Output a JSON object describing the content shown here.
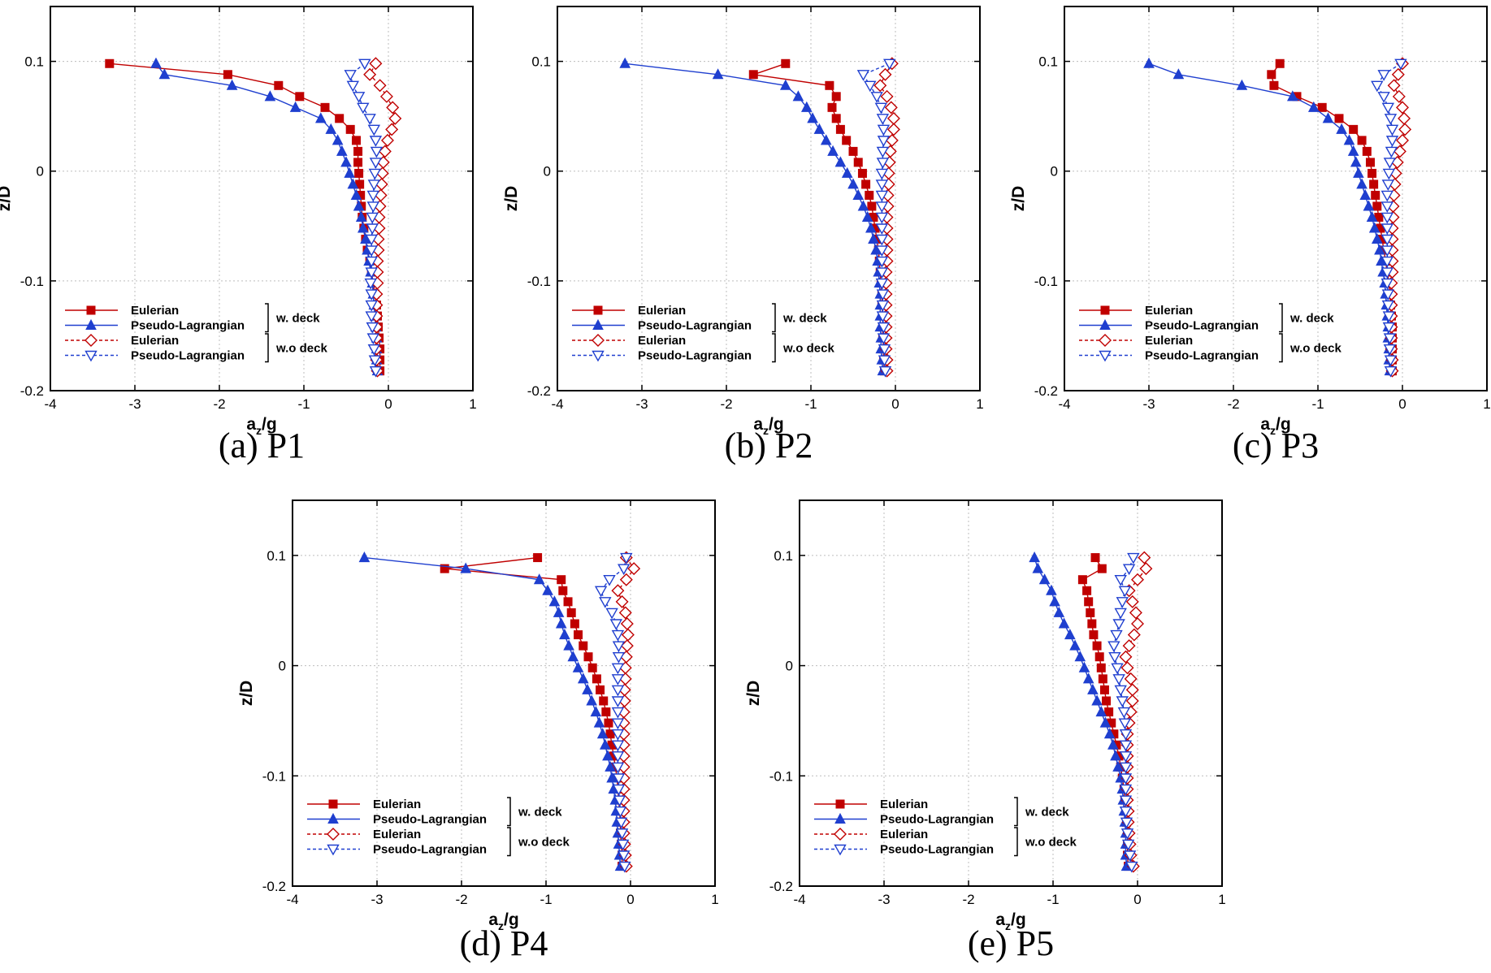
{
  "colors": {
    "red": "#c00000",
    "blue": "#1f3fcf",
    "grid": "#bdbdbd"
  },
  "legend": {
    "items": [
      {
        "label": "Eulerian",
        "series": "euler_deck"
      },
      {
        "label": "Pseudo-Lagrangian",
        "series": "lag_deck"
      },
      {
        "label": "Eulerian",
        "series": "euler_nodeck"
      },
      {
        "label": "Pseudo-Lagrangian",
        "series": "lag_nodeck"
      }
    ],
    "group_w_deck": "w. deck",
    "group_wo_deck": "w.o deck",
    "placement": "bottom-left"
  },
  "chart_data": [
    {
      "type": "line",
      "caption": "(a) P1",
      "xlabel": "a",
      "xlabel_sub": "z",
      "xlabel_tail": "/g",
      "ylabel": "z/D",
      "xlim": [
        -4,
        1
      ],
      "ylim": [
        -0.2,
        0.15
      ],
      "xticks": [
        "-4",
        "-3",
        "-2",
        "-1",
        "0",
        "1"
      ],
      "yticks": [
        "-0.2",
        "-0.1",
        "0",
        "0.1"
      ],
      "grid": true,
      "y": [
        0.098,
        0.088,
        0.078,
        0.068,
        0.058,
        0.048,
        0.038,
        0.028,
        0.018,
        0.008,
        -0.002,
        -0.012,
        -0.022,
        -0.032,
        -0.042,
        -0.052,
        -0.062,
        -0.072,
        -0.082,
        -0.092,
        -0.102,
        -0.112,
        -0.122,
        -0.132,
        -0.142,
        -0.152,
        -0.162,
        -0.172,
        -0.182
      ],
      "series": [
        {
          "name": "Eulerian w. deck",
          "key": "euler_deck",
          "x": [
            -3.3,
            -1.9,
            -1.3,
            -1.05,
            -0.75,
            -0.58,
            -0.45,
            -0.38,
            -0.36,
            -0.36,
            -0.35,
            -0.34,
            -0.33,
            -0.32,
            -0.31,
            -0.29,
            -0.27,
            -0.25,
            -0.22,
            -0.2,
            -0.18,
            -0.16,
            -0.14,
            -0.13,
            -0.12,
            -0.11,
            -0.1,
            -0.1,
            -0.1
          ]
        },
        {
          "name": "Pseudo-Lagrangian w. deck",
          "key": "lag_deck",
          "x": [
            -2.75,
            -2.65,
            -1.85,
            -1.4,
            -1.1,
            -0.8,
            -0.68,
            -0.6,
            -0.55,
            -0.5,
            -0.46,
            -0.42,
            -0.38,
            -0.35,
            -0.32,
            -0.3,
            -0.27,
            -0.25,
            -0.23,
            -0.21,
            -0.19,
            -0.18,
            -0.17,
            -0.16,
            -0.15,
            -0.14,
            -0.14,
            -0.14,
            -0.13
          ]
        },
        {
          "name": "Eulerian w.o deck",
          "key": "euler_nodeck",
          "x": [
            -0.15,
            -0.22,
            -0.1,
            -0.02,
            0.05,
            0.08,
            0.04,
            -0.01,
            -0.04,
            -0.06,
            -0.07,
            -0.08,
            -0.09,
            -0.1,
            -0.11,
            -0.11,
            -0.12,
            -0.12,
            -0.13,
            -0.13,
            -0.13,
            -0.14,
            -0.14,
            -0.14,
            -0.14,
            -0.14,
            -0.14,
            -0.14,
            -0.13
          ]
        },
        {
          "name": "Pseudo-Lagrangian w.o deck",
          "key": "lag_nodeck",
          "x": [
            -0.28,
            -0.45,
            -0.42,
            -0.35,
            -0.3,
            -0.22,
            -0.17,
            -0.15,
            -0.14,
            -0.15,
            -0.16,
            -0.17,
            -0.18,
            -0.18,
            -0.19,
            -0.19,
            -0.2,
            -0.2,
            -0.2,
            -0.2,
            -0.21,
            -0.2,
            -0.2,
            -0.2,
            -0.19,
            -0.18,
            -0.17,
            -0.16,
            -0.15
          ]
        }
      ]
    },
    {
      "type": "line",
      "caption": "(b) P2",
      "xlabel": "a",
      "xlabel_sub": "z",
      "xlabel_tail": "/g",
      "ylabel": "z/D",
      "xlim": [
        -4,
        1
      ],
      "ylim": [
        -0.2,
        0.15
      ],
      "xticks": [
        "-4",
        "-3",
        "-2",
        "-1",
        "0",
        "1"
      ],
      "yticks": [
        "-0.2",
        "-0.1",
        "0",
        "0.1"
      ],
      "grid": true,
      "y": [
        0.098,
        0.088,
        0.078,
        0.068,
        0.058,
        0.048,
        0.038,
        0.028,
        0.018,
        0.008,
        -0.002,
        -0.012,
        -0.022,
        -0.032,
        -0.042,
        -0.052,
        -0.062,
        -0.072,
        -0.082,
        -0.092,
        -0.102,
        -0.112,
        -0.122,
        -0.132,
        -0.142,
        -0.152,
        -0.162,
        -0.172,
        -0.182
      ],
      "series": [
        {
          "name": "Eulerian w. deck",
          "key": "euler_deck",
          "x": [
            -1.3,
            -1.68,
            -0.78,
            -0.7,
            -0.75,
            -0.7,
            -0.65,
            -0.58,
            -0.5,
            -0.44,
            -0.39,
            -0.35,
            -0.31,
            -0.28,
            -0.26,
            -0.24,
            -0.22,
            -0.2,
            -0.19,
            -0.18,
            -0.17,
            -0.16,
            -0.16,
            -0.15,
            -0.15,
            -0.15,
            -0.14,
            -0.14,
            -0.13
          ]
        },
        {
          "name": "Pseudo-Lagrangian w. deck",
          "key": "lag_deck",
          "x": [
            -3.2,
            -2.1,
            -1.3,
            -1.15,
            -1.05,
            -0.98,
            -0.9,
            -0.82,
            -0.74,
            -0.65,
            -0.57,
            -0.5,
            -0.44,
            -0.38,
            -0.33,
            -0.29,
            -0.26,
            -0.23,
            -0.21,
            -0.2,
            -0.19,
            -0.18,
            -0.18,
            -0.18,
            -0.18,
            -0.17,
            -0.17,
            -0.16,
            -0.15
          ]
        },
        {
          "name": "Eulerian w.o deck",
          "key": "euler_nodeck",
          "x": [
            -0.04,
            -0.12,
            -0.18,
            -0.1,
            -0.05,
            -0.02,
            -0.02,
            -0.04,
            -0.06,
            -0.07,
            -0.08,
            -0.08,
            -0.09,
            -0.09,
            -0.1,
            -0.1,
            -0.1,
            -0.1,
            -0.1,
            -0.11,
            -0.11,
            -0.11,
            -0.11,
            -0.11,
            -0.11,
            -0.11,
            -0.11,
            -0.1,
            -0.1
          ]
        },
        {
          "name": "Pseudo-Lagrangian w.o deck",
          "key": "lag_nodeck",
          "x": [
            -0.07,
            -0.38,
            -0.3,
            -0.22,
            -0.17,
            -0.15,
            -0.14,
            -0.14,
            -0.15,
            -0.15,
            -0.16,
            -0.16,
            -0.16,
            -0.16,
            -0.16,
            -0.16,
            -0.16,
            -0.16,
            -0.16,
            -0.16,
            -0.16,
            -0.15,
            -0.15,
            -0.15,
            -0.14,
            -0.14,
            -0.13,
            -0.13,
            -0.12
          ]
        }
      ]
    },
    {
      "type": "line",
      "caption": "(c) P3",
      "xlabel": "a",
      "xlabel_sub": "z",
      "xlabel_tail": "/g",
      "ylabel": "z/D",
      "xlim": [
        -4,
        1
      ],
      "ylim": [
        -0.2,
        0.15
      ],
      "xticks": [
        "-4",
        "-3",
        "-2",
        "-1",
        "0",
        "1"
      ],
      "yticks": [
        "-0.2",
        "-0.1",
        "0",
        "0.1"
      ],
      "grid": true,
      "y": [
        0.098,
        0.088,
        0.078,
        0.068,
        0.058,
        0.048,
        0.038,
        0.028,
        0.018,
        0.008,
        -0.002,
        -0.012,
        -0.022,
        -0.032,
        -0.042,
        -0.052,
        -0.062,
        -0.072,
        -0.082,
        -0.092,
        -0.102,
        -0.112,
        -0.122,
        -0.132,
        -0.142,
        -0.152,
        -0.162,
        -0.172,
        -0.182
      ],
      "series": [
        {
          "name": "Eulerian w. deck",
          "key": "euler_deck",
          "x": [
            -1.45,
            -1.55,
            -1.52,
            -1.25,
            -0.95,
            -0.75,
            -0.58,
            -0.48,
            -0.42,
            -0.38,
            -0.36,
            -0.34,
            -0.32,
            -0.3,
            -0.28,
            -0.26,
            -0.24,
            -0.22,
            -0.2,
            -0.18,
            -0.16,
            -0.15,
            -0.14,
            -0.13,
            -0.12,
            -0.12,
            -0.12,
            -0.12,
            -0.12
          ]
        },
        {
          "name": "Pseudo-Lagrangian w. deck",
          "key": "lag_deck",
          "x": [
            -3.0,
            -2.65,
            -1.9,
            -1.3,
            -1.05,
            -0.88,
            -0.72,
            -0.63,
            -0.58,
            -0.55,
            -0.52,
            -0.48,
            -0.44,
            -0.4,
            -0.36,
            -0.33,
            -0.3,
            -0.27,
            -0.25,
            -0.23,
            -0.21,
            -0.2,
            -0.19,
            -0.18,
            -0.17,
            -0.17,
            -0.16,
            -0.16,
            -0.15
          ]
        },
        {
          "name": "Eulerian w.o deck",
          "key": "euler_nodeck",
          "x": [
            0.0,
            -0.05,
            -0.1,
            -0.04,
            0.0,
            0.02,
            0.03,
            0.0,
            -0.03,
            -0.06,
            -0.08,
            -0.09,
            -0.1,
            -0.11,
            -0.11,
            -0.12,
            -0.12,
            -0.12,
            -0.12,
            -0.12,
            -0.13,
            -0.13,
            -0.13,
            -0.13,
            -0.13,
            -0.13,
            -0.13,
            -0.12,
            -0.12
          ]
        },
        {
          "name": "Pseudo-Lagrangian w.o deck",
          "key": "lag_nodeck",
          "x": [
            -0.02,
            -0.22,
            -0.3,
            -0.22,
            -0.17,
            -0.14,
            -0.12,
            -0.12,
            -0.13,
            -0.15,
            -0.16,
            -0.17,
            -0.18,
            -0.18,
            -0.18,
            -0.18,
            -0.18,
            -0.18,
            -0.18,
            -0.18,
            -0.18,
            -0.17,
            -0.17,
            -0.16,
            -0.16,
            -0.15,
            -0.15,
            -0.14,
            -0.14
          ]
        }
      ]
    },
    {
      "type": "line",
      "caption": "(d) P4",
      "xlabel": "a",
      "xlabel_sub": "z",
      "xlabel_tail": "/g",
      "ylabel": "z/D",
      "xlim": [
        -4,
        1
      ],
      "ylim": [
        -0.2,
        0.15
      ],
      "xticks": [
        "-4",
        "-3",
        "-2",
        "-1",
        "0",
        "1"
      ],
      "yticks": [
        "-0.2",
        "-0.1",
        "0",
        "0.1"
      ],
      "grid": true,
      "y": [
        0.098,
        0.088,
        0.078,
        0.068,
        0.058,
        0.048,
        0.038,
        0.028,
        0.018,
        0.008,
        -0.002,
        -0.012,
        -0.022,
        -0.032,
        -0.042,
        -0.052,
        -0.062,
        -0.072,
        -0.082,
        -0.092,
        -0.102,
        -0.112,
        -0.122,
        -0.132,
        -0.142,
        -0.152,
        -0.162,
        -0.172,
        -0.182
      ],
      "series": [
        {
          "name": "Eulerian w. deck",
          "key": "euler_deck",
          "x": [
            -1.1,
            -2.2,
            -0.82,
            -0.8,
            -0.74,
            -0.7,
            -0.66,
            -0.62,
            -0.56,
            -0.5,
            -0.45,
            -0.4,
            -0.36,
            -0.32,
            -0.29,
            -0.26,
            -0.24,
            -0.22,
            -0.2,
            -0.18,
            -0.16,
            -0.15,
            -0.14,
            -0.13,
            -0.12,
            -0.12,
            -0.11,
            -0.1,
            -0.1
          ]
        },
        {
          "name": "Pseudo-Lagrangian w. deck",
          "key": "lag_deck",
          "x": [
            -3.15,
            -1.95,
            -1.08,
            -0.98,
            -0.9,
            -0.85,
            -0.82,
            -0.78,
            -0.73,
            -0.68,
            -0.62,
            -0.56,
            -0.51,
            -0.46,
            -0.41,
            -0.37,
            -0.33,
            -0.3,
            -0.27,
            -0.24,
            -0.22,
            -0.2,
            -0.18,
            -0.17,
            -0.16,
            -0.15,
            -0.14,
            -0.13,
            -0.12
          ]
        },
        {
          "name": "Eulerian w.o deck",
          "key": "euler_nodeck",
          "x": [
            -0.05,
            0.04,
            -0.05,
            -0.15,
            -0.1,
            -0.06,
            -0.04,
            -0.03,
            -0.04,
            -0.05,
            -0.06,
            -0.06,
            -0.07,
            -0.07,
            -0.08,
            -0.08,
            -0.08,
            -0.08,
            -0.08,
            -0.08,
            -0.08,
            -0.08,
            -0.08,
            -0.08,
            -0.08,
            -0.08,
            -0.07,
            -0.06,
            -0.05
          ]
        },
        {
          "name": "Pseudo-Lagrangian w.o deck",
          "key": "lag_nodeck",
          "x": [
            -0.05,
            -0.08,
            -0.25,
            -0.35,
            -0.3,
            -0.22,
            -0.17,
            -0.15,
            -0.14,
            -0.14,
            -0.15,
            -0.15,
            -0.15,
            -0.15,
            -0.15,
            -0.15,
            -0.15,
            -0.15,
            -0.15,
            -0.15,
            -0.14,
            -0.14,
            -0.13,
            -0.12,
            -0.11,
            -0.1,
            -0.09,
            -0.08,
            -0.07
          ]
        }
      ]
    },
    {
      "type": "line",
      "caption": "(e) P5",
      "xlabel": "a",
      "xlabel_sub": "z",
      "xlabel_tail": "/g",
      "ylabel": "z/D",
      "xlim": [
        -4,
        1
      ],
      "ylim": [
        -0.2,
        0.15
      ],
      "xticks": [
        "-4",
        "-3",
        "-2",
        "-1",
        "0",
        "1"
      ],
      "yticks": [
        "-0.2",
        "-0.1",
        "0",
        "0.1"
      ],
      "grid": true,
      "y": [
        0.098,
        0.088,
        0.078,
        0.068,
        0.058,
        0.048,
        0.038,
        0.028,
        0.018,
        0.008,
        -0.002,
        -0.012,
        -0.022,
        -0.032,
        -0.042,
        -0.052,
        -0.062,
        -0.072,
        -0.082,
        -0.092,
        -0.102,
        -0.112,
        -0.122,
        -0.132,
        -0.142,
        -0.152,
        -0.162,
        -0.172,
        -0.182
      ],
      "series": [
        {
          "name": "Eulerian w. deck",
          "key": "euler_deck",
          "x": [
            -0.5,
            -0.42,
            -0.65,
            -0.6,
            -0.58,
            -0.56,
            -0.54,
            -0.52,
            -0.48,
            -0.45,
            -0.43,
            -0.41,
            -0.39,
            -0.37,
            -0.34,
            -0.31,
            -0.28,
            -0.25,
            -0.22,
            -0.2,
            -0.18,
            -0.16,
            -0.15,
            -0.14,
            -0.13,
            -0.12,
            -0.12,
            -0.12,
            -0.11
          ]
        },
        {
          "name": "Pseudo-Lagrangian w. deck",
          "key": "lag_deck",
          "x": [
            -1.22,
            -1.18,
            -1.1,
            -1.02,
            -0.98,
            -0.93,
            -0.87,
            -0.8,
            -0.74,
            -0.68,
            -0.63,
            -0.58,
            -0.53,
            -0.48,
            -0.43,
            -0.38,
            -0.33,
            -0.29,
            -0.26,
            -0.23,
            -0.2,
            -0.18,
            -0.17,
            -0.16,
            -0.15,
            -0.14,
            -0.14,
            -0.14,
            -0.13
          ]
        },
        {
          "name": "Eulerian w.o deck",
          "key": "euler_nodeck",
          "x": [
            0.08,
            0.1,
            0.0,
            -0.1,
            -0.06,
            -0.02,
            0.0,
            -0.04,
            -0.1,
            -0.14,
            -0.12,
            -0.08,
            -0.06,
            -0.06,
            -0.08,
            -0.1,
            -0.12,
            -0.12,
            -0.12,
            -0.12,
            -0.12,
            -0.12,
            -0.12,
            -0.11,
            -0.11,
            -0.1,
            -0.09,
            -0.08,
            -0.05
          ]
        },
        {
          "name": "Pseudo-Lagrangian w.o deck",
          "key": "lag_nodeck",
          "x": [
            -0.05,
            -0.1,
            -0.2,
            -0.15,
            -0.18,
            -0.2,
            -0.22,
            -0.25,
            -0.28,
            -0.27,
            -0.24,
            -0.22,
            -0.2,
            -0.18,
            -0.16,
            -0.15,
            -0.14,
            -0.14,
            -0.14,
            -0.14,
            -0.14,
            -0.14,
            -0.14,
            -0.14,
            -0.13,
            -0.12,
            -0.11,
            -0.09,
            -0.07
          ]
        }
      ]
    }
  ]
}
